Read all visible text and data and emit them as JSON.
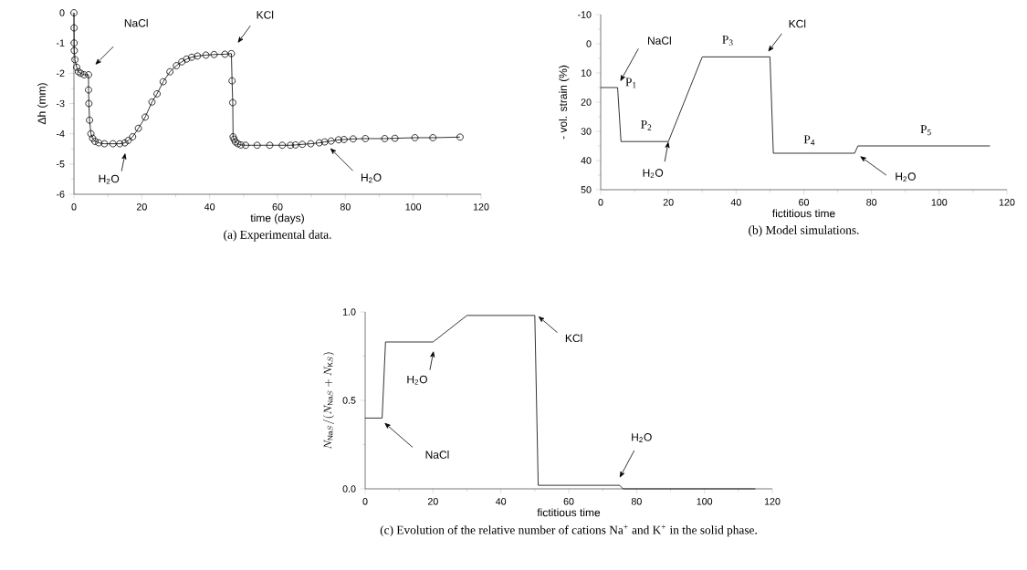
{
  "chart_data": [
    {
      "type": "line",
      "title": "(a) Experimental data.",
      "xlabel": "time (days)",
      "ylabel": "Δh (mm)",
      "marker": "circle",
      "color": "#000000",
      "x": [
        0,
        0.03,
        0.06,
        0.1,
        0.3,
        0.8,
        1.3,
        2,
        3,
        4.3,
        4.3,
        4.4,
        4.6,
        5,
        5.5,
        6.2,
        7.3,
        9,
        11.5,
        13.5,
        15,
        16,
        17.3,
        19,
        21,
        23,
        24.5,
        26.3,
        28.3,
        30.2,
        31.8,
        33.2,
        34.7,
        36.4,
        38.9,
        41.3,
        44.5,
        46.4,
        46.6,
        46.8,
        46.9,
        47.2,
        47.6,
        48.3,
        49.2,
        50.6,
        54,
        57.7,
        61.4,
        63.8,
        65.3,
        67.3,
        69.8,
        72.3,
        73.9,
        75.8,
        78,
        79.6,
        82.3,
        85.9,
        91.6,
        94.6,
        100.5,
        105.8,
        113.8
      ],
      "values": [
        0,
        -0.5,
        -1,
        -1.25,
        -1.55,
        -1.8,
        -1.95,
        -2.0,
        -2.05,
        -2.05,
        -2.55,
        -3.0,
        -3.55,
        -4.0,
        -4.15,
        -4.25,
        -4.3,
        -4.33,
        -4.33,
        -4.33,
        -4.3,
        -4.22,
        -4.1,
        -3.82,
        -3.45,
        -2.95,
        -2.68,
        -2.28,
        -1.95,
        -1.75,
        -1.62,
        -1.53,
        -1.47,
        -1.43,
        -1.4,
        -1.38,
        -1.37,
        -1.35,
        -2.25,
        -2.97,
        -4.1,
        -4.18,
        -4.27,
        -4.33,
        -4.37,
        -4.38,
        -4.38,
        -4.38,
        -4.38,
        -4.38,
        -4.37,
        -4.35,
        -4.33,
        -4.3,
        -4.27,
        -4.24,
        -4.2,
        -4.19,
        -4.17,
        -4.16,
        -4.16,
        -4.15,
        -4.13,
        -4.13,
        -4.11
      ],
      "xlim": [
        0,
        120
      ],
      "xticks": [
        0,
        20,
        40,
        60,
        80,
        100,
        120
      ],
      "ylim": [
        -6,
        0
      ],
      "yticks": [
        -6,
        -5,
        -4,
        -3,
        -2,
        -1,
        0
      ],
      "annotations": [
        "NaCl",
        "H$_{2}$O",
        "KCl",
        "H$_{2}$O"
      ]
    },
    {
      "type": "line",
      "title": "(b) Model simulations.",
      "xlabel": "fictitious time",
      "ylabel": "- vol. strain (%)",
      "color": "#000000",
      "x": [
        0,
        5,
        6,
        20,
        30,
        50,
        51,
        75,
        76,
        115
      ],
      "values": [
        15,
        15,
        33.5,
        33.5,
        4.5,
        4.5,
        37.5,
        37.5,
        35,
        35
      ],
      "xlim": [
        0,
        120
      ],
      "xticks": [
        0,
        20,
        40,
        60,
        80,
        100,
        120
      ],
      "ylim": [
        50,
        -10
      ],
      "yticks": [
        -10,
        0,
        10,
        20,
        30,
        40,
        50
      ],
      "annotations": [
        "NaCl",
        {
          "text": "H$_{2}$O",
          "x": 20,
          "y": 33.5
        },
        "KCl",
        "H$_{2}$O",
        "P$_{1}$",
        "P$_{2}$",
        "P$_{3}$",
        "P$_{4}$",
        "P$_{5}$"
      ]
    },
    {
      "type": "line",
      "title": "(c) Evolution of the relative number of cations Na$^{+}$ and K$^{+}$ in the solid phase.",
      "xlabel": "fictitious time",
      "ylabel": "N_{\\mathrm{Na}S}/(N_{\\mathrm{Na}S}+N_{\\mathrm{K}S})",
      "color": "#000000",
      "x": [
        0,
        5,
        6,
        20,
        30,
        50,
        51,
        75,
        76,
        115
      ],
      "values": [
        0.4,
        0.4,
        0.83,
        0.83,
        0.98,
        0.98,
        0.02,
        0.02,
        0,
        0
      ],
      "xlim": [
        0,
        120
      ],
      "xticks": [
        0,
        20,
        40,
        60,
        80,
        100,
        120
      ],
      "ylim": [
        0,
        1
      ],
      "yticks": [
        {
          "value": 0,
          "label": "0.0"
        },
        {
          "value": 0.5,
          "label": "0.5"
        },
        {
          "value": 1,
          "label": "1.0"
        }
      ],
      "annotations": [
        "H$_{2}$O",
        "KCl",
        "NaCl",
        "H$_{2}$O"
      ]
    }
  ]
}
